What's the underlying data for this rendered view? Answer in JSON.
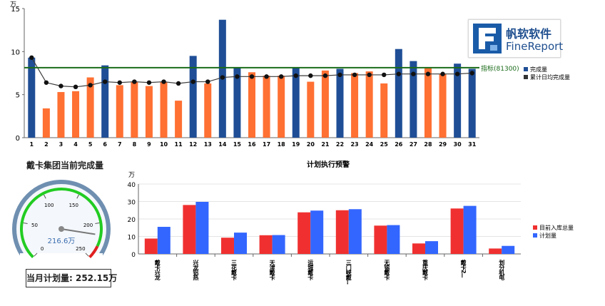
{
  "chart_data": [
    {
      "type": "bar",
      "unit": "万",
      "ylim": [
        0,
        15
      ],
      "yticks": [
        0,
        5,
        10,
        15
      ],
      "categories": [
        "1",
        "2",
        "3",
        "4",
        "5",
        "6",
        "7",
        "8",
        "9",
        "10",
        "11",
        "12",
        "13",
        "14",
        "15",
        "16",
        "17",
        "18",
        "19",
        "20",
        "21",
        "22",
        "23",
        "24",
        "25",
        "26",
        "27",
        "28",
        "29",
        "30",
        "31"
      ],
      "series": [
        {
          "name": "完成量",
          "type": "bar",
          "values": [
            9.3,
            3.4,
            5.3,
            5.4,
            7.0,
            8.4,
            6.1,
            6.5,
            6.0,
            6.5,
            4.3,
            9.5,
            6.3,
            13.7,
            8.1,
            7.6,
            7.2,
            7.2,
            8.1,
            6.5,
            7.8,
            8.0,
            7.5,
            7.7,
            6.3,
            10.3,
            8.9,
            8.1,
            7.4,
            8.6,
            8.0
          ]
        },
        {
          "name": "累计日均完成量",
          "type": "line",
          "values": [
            9.3,
            6.4,
            6.0,
            5.9,
            6.1,
            6.5,
            6.4,
            6.5,
            6.4,
            6.5,
            6.3,
            6.5,
            6.5,
            7.0,
            7.1,
            7.1,
            7.1,
            7.1,
            7.2,
            7.2,
            7.2,
            7.3,
            7.3,
            7.3,
            7.3,
            7.4,
            7.4,
            7.4,
            7.4,
            7.4,
            7.5
          ]
        }
      ],
      "target_line": {
        "value": 8.13,
        "label": "指标(81300)"
      },
      "colors": {
        "bar_odd_position": "#1f4e96",
        "bar_even_position": "#ff7033",
        "highlight": "#1f4e96",
        "line": "#3a3a3a",
        "target": "#1a6b1a"
      },
      "highlight_days": [
        "1",
        "6",
        "12",
        "14",
        "15",
        "19",
        "22",
        "26",
        "27",
        "30",
        "31"
      ],
      "legend_placement": "right"
    },
    {
      "type": "gauge",
      "title": "戴卡集团当前完成量",
      "value": 216.6,
      "value_label": "216.6万",
      "min": 0,
      "max": 250,
      "ticks": [
        "0",
        "50",
        "100",
        "150",
        "200",
        "250"
      ],
      "plan_label": "当月计划量: 252.15万"
    },
    {
      "type": "bar",
      "title": "计划执行预警",
      "unit": "万",
      "ylim": [
        0,
        40
      ],
      "yticks": [
        0,
        10,
        20,
        30,
        40
      ],
      "categories": [
        "戴卡兴龙",
        "兴龙铝热",
        "三花戴卡",
        "天津戴卡",
        "运城戴卡",
        "三门峡戴...",
        "无锡戴卡",
        "重庆戴卡",
        "戴卡2...",
        "划分机电"
      ],
      "series": [
        {
          "name": "目前入库总量",
          "color": "#f03030",
          "values": [
            8.8,
            28.0,
            9.3,
            10.7,
            23.8,
            25.0,
            16.2,
            6.0,
            26.0,
            3.1
          ]
        },
        {
          "name": "计划量",
          "color": "#3366ff",
          "values": [
            15.5,
            29.8,
            12.2,
            10.8,
            24.8,
            25.6,
            16.5,
            7.3,
            27.5,
            4.6
          ]
        }
      ],
      "legend_placement": "right"
    }
  ],
  "logo": {
    "cn": "帆软软件",
    "en": "FineReport"
  }
}
